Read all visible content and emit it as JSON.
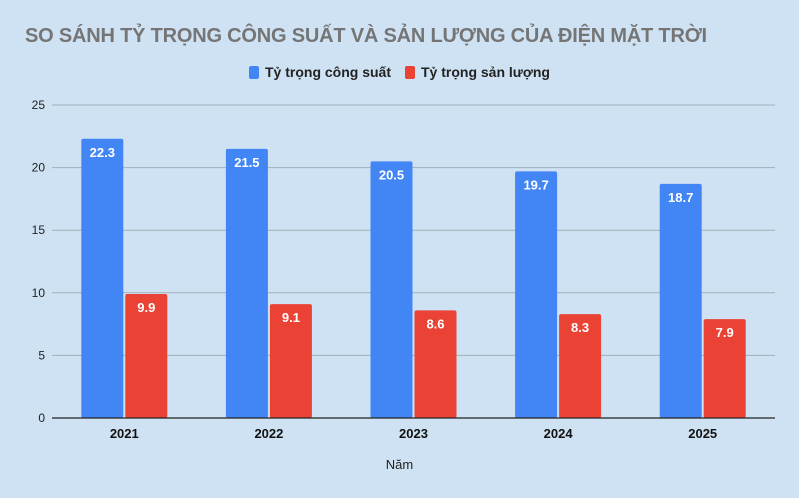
{
  "title": "SO SÁNH TỶ TRỌNG CÔNG SUẤT VÀ SẢN LƯỢNG CỦA ĐIỆN MẶT TRỜI",
  "legend": [
    {
      "label": "Tỷ trọng công suất",
      "color": "#4285f4"
    },
    {
      "label": "Tỷ trọng sản lượng",
      "color": "#ea4335"
    }
  ],
  "chart_data": {
    "type": "bar",
    "title": "SO SÁNH TỶ TRỌNG CÔNG SUẤT VÀ SẢN LƯỢNG CỦA ĐIỆN MẶT TRỜI",
    "categories": [
      "2021",
      "2022",
      "2023",
      "2024",
      "2025"
    ],
    "series": [
      {
        "name": "Tỷ trọng công suất",
        "color": "#4285f4",
        "values": [
          22.3,
          21.5,
          20.5,
          19.7,
          18.7
        ]
      },
      {
        "name": "Tỷ trọng sản lượng",
        "color": "#ea4335",
        "values": [
          9.9,
          9.1,
          8.6,
          8.3,
          7.9
        ]
      }
    ],
    "xlabel": "Năm",
    "ylabel": "",
    "ylim": [
      0,
      25
    ],
    "yticks": [
      0,
      5,
      10,
      15,
      20,
      25
    ],
    "grid": true,
    "legend_position": "top",
    "data_labels": true
  }
}
